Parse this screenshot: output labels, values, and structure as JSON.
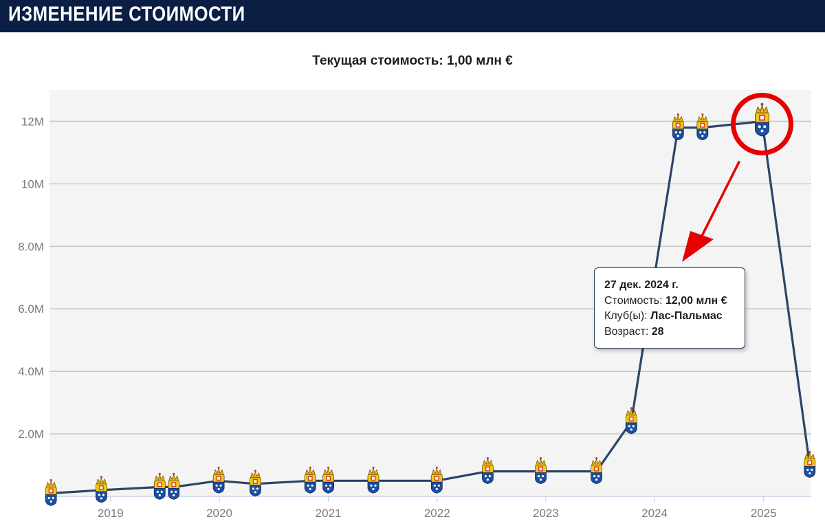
{
  "header": {
    "title": "ИЗМЕНЕНИЕ СТОИМОСТИ"
  },
  "current_value": "Текущая стоимость: 1,00 млн €",
  "colors": {
    "header_bg": "#0b1f44",
    "line": "#2c4468",
    "plot_bg": "#f4f4f4",
    "grid": "#c9c9c9",
    "highlight": "#e60000"
  },
  "marker_icon": "club-crest-icon",
  "tooltip": {
    "date": "27 дек. 2024 г.",
    "value_label": "Стоимость:",
    "value": "12,00 млн €",
    "club_label": "Клуб(ы):",
    "club": "Лас-Пальмас",
    "age_label": "Возраст:",
    "age": "28"
  },
  "chart_data": {
    "type": "line",
    "title": "Текущая стоимость: 1,00 млн €",
    "xlabel": "",
    "ylabel": "",
    "x_ticks": [
      "2019",
      "2020",
      "2021",
      "2022",
      "2023",
      "2024",
      "2025"
    ],
    "y_ticks": [
      "2.0M",
      "4.0M",
      "6.0M",
      "8.0M",
      "10M",
      "12M"
    ],
    "ylim": [
      0,
      13
    ],
    "xlim": [
      "2018-06-10",
      "2025-06-10"
    ],
    "grid": true,
    "series": [
      {
        "points": [
          {
            "x": "2018-06-15",
            "y": 0.1
          },
          {
            "x": "2018-12-01",
            "y": 0.2
          },
          {
            "x": "2019-06-15",
            "y": 0.3
          },
          {
            "x": "2019-08-01",
            "y": 0.3
          },
          {
            "x": "2019-12-30",
            "y": 0.5
          },
          {
            "x": "2020-05-01",
            "y": 0.4
          },
          {
            "x": "2020-11-01",
            "y": 0.5
          },
          {
            "x": "2021-01-01",
            "y": 0.5
          },
          {
            "x": "2021-06-01",
            "y": 0.5
          },
          {
            "x": "2021-12-31",
            "y": 0.5
          },
          {
            "x": "2022-06-20",
            "y": 0.8
          },
          {
            "x": "2022-12-15",
            "y": 0.8
          },
          {
            "x": "2023-06-20",
            "y": 0.8
          },
          {
            "x": "2023-10-15",
            "y": 2.4
          },
          {
            "x": "2024-03-20",
            "y": 11.8
          },
          {
            "x": "2024-06-10",
            "y": 11.8
          },
          {
            "x": "2024-12-27",
            "y": 12.0
          },
          {
            "x": "2025-06-05",
            "y": 1.0
          }
        ]
      }
    ]
  }
}
